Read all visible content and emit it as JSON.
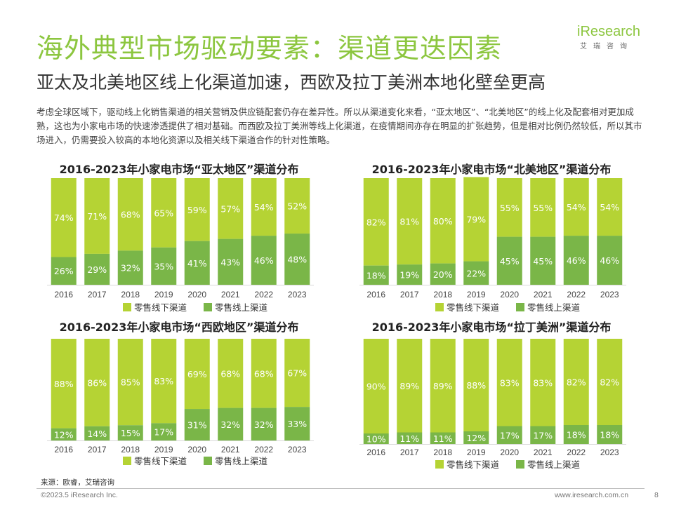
{
  "header": {
    "title": "海外典型市场驱动要素：渠道更迭因素",
    "subtitle": "亚太及北美地区线上化渠道加速，西欧及拉丁美洲本地化壁垒更高",
    "logo_main": "iResearch",
    "logo_sub": "艾瑞咨询"
  },
  "intro": "考虑全球区域下，驱动线上化销售渠道的相关营销及供应链配套仍存在差异性。所以从渠道变化来看，“亚太地区”、“北美地区”的线上化及配套相对更加成熟，这也为小家电市场的快速渗透提供了相对基础。而西欧及拉丁美洲等线上化渠道，在疫情期间亦存在明显的扩张趋势，但是相对比例仍然较低，所以其市场进入，仍需要投入较高的本地化资源以及相关线下渠道合作的针对性策略。",
  "colors": {
    "offline": "#b5d334",
    "online": "#7ab648",
    "text": "#ffffff"
  },
  "chart_data": [
    {
      "type": "bar",
      "stacked": true,
      "title": "2016-2023年小家电市场“亚太地区”渠道分布",
      "categories": [
        "2016",
        "2017",
        "2018",
        "2019",
        "2020",
        "2021",
        "2022",
        "2023"
      ],
      "series": [
        {
          "name": "零售线下渠道",
          "values": [
            74,
            71,
            68,
            65,
            59,
            57,
            54,
            52
          ]
        },
        {
          "name": "零售线上渠道",
          "values": [
            26,
            29,
            32,
            35,
            41,
            43,
            46,
            48
          ]
        }
      ],
      "ylim": [
        0,
        100
      ],
      "unit": "%"
    },
    {
      "type": "bar",
      "stacked": true,
      "title": "2016-2023年小家电市场“北美地区”渠道分布",
      "categories": [
        "2016",
        "2017",
        "2018",
        "2019",
        "2020",
        "2021",
        "2022",
        "2023"
      ],
      "series": [
        {
          "name": "零售线下渠道",
          "values": [
            82,
            81,
            80,
            79,
            55,
            55,
            54,
            54
          ]
        },
        {
          "name": "零售线上渠道",
          "values": [
            18,
            19,
            20,
            22,
            45,
            45,
            46,
            46
          ]
        }
      ],
      "ylim": [
        0,
        100
      ],
      "unit": "%"
    },
    {
      "type": "bar",
      "stacked": true,
      "title": "2016-2023年小家电市场“西欧地区”渠道分布",
      "categories": [
        "2016",
        "2017",
        "2018",
        "2019",
        "2020",
        "2021",
        "2022",
        "2023"
      ],
      "series": [
        {
          "name": "零售线下渠道",
          "values": [
            88,
            86,
            85,
            83,
            69,
            68,
            68,
            67
          ]
        },
        {
          "name": "零售线上渠道",
          "values": [
            12,
            14,
            15,
            17,
            31,
            32,
            32,
            33
          ]
        }
      ],
      "ylim": [
        0,
        100
      ],
      "unit": "%"
    },
    {
      "type": "bar",
      "stacked": true,
      "title": "2016-2023年小家电市场“拉丁美洲”渠道分布",
      "categories": [
        "2016",
        "2017",
        "2018",
        "2019",
        "2020",
        "2021",
        "2022",
        "2023"
      ],
      "series": [
        {
          "name": "零售线下渠道",
          "values": [
            90,
            89,
            89,
            88,
            83,
            83,
            82,
            82
          ]
        },
        {
          "name": "零售线上渠道",
          "values": [
            10,
            11,
            11,
            12,
            17,
            17,
            18,
            18
          ]
        }
      ],
      "ylim": [
        0,
        100
      ],
      "unit": "%"
    }
  ],
  "footer": {
    "source": "来源：欧睿，艾瑞咨询",
    "copyright": "©2023.5 iResearch Inc.",
    "url": "www.iresearch.com.cn",
    "page": "8"
  }
}
